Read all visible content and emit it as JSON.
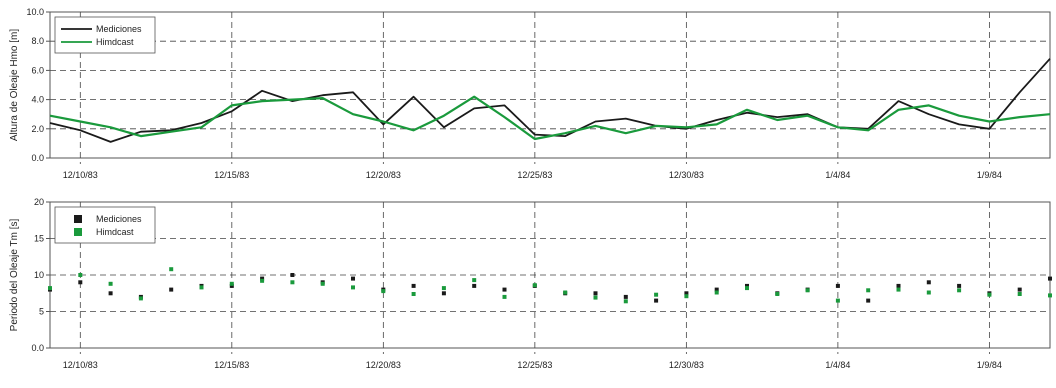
{
  "colors": {
    "measured": "#1a1a1a",
    "hindcast": "#1a9a3c",
    "grid": "#444444",
    "axis": "#555555"
  },
  "chart_data": [
    {
      "type": "line",
      "ylabel": "Altura de Oleaje Hmo [m]",
      "ylim": [
        0,
        10
      ],
      "yticks": [
        "0.0",
        "2.0",
        "4.0",
        "6.0",
        "8.0",
        "10.0"
      ],
      "ytick_values": [
        0,
        2,
        4,
        6,
        8,
        10
      ],
      "xlim": [
        "1983-12-09",
        "1984-01-11"
      ],
      "xticks": [
        "12/10/83",
        "12/15/83",
        "12/20/83",
        "12/25/83",
        "12/30/83",
        "1/4/84",
        "1/9/84"
      ],
      "xtick_dates": [
        "1983-12-10",
        "1983-12-15",
        "1983-12-20",
        "1983-12-25",
        "1983-12-30",
        "1984-01-04",
        "1984-01-09"
      ],
      "grid": "dashed",
      "legend": "top-left",
      "series": [
        {
          "name": "Mediciones",
          "style": "line",
          "x": [
            "1983-12-09",
            "1983-12-10",
            "1983-12-11",
            "1983-12-12",
            "1983-12-13",
            "1983-12-14",
            "1983-12-15",
            "1983-12-16",
            "1983-12-17",
            "1983-12-18",
            "1983-12-19",
            "1983-12-20",
            "1983-12-21",
            "1983-12-22",
            "1983-12-23",
            "1983-12-24",
            "1983-12-25",
            "1983-12-26",
            "1983-12-27",
            "1983-12-28",
            "1983-12-29",
            "1983-12-30",
            "1983-12-31",
            "1984-01-01",
            "1984-01-02",
            "1984-01-03",
            "1984-01-04",
            "1984-01-05",
            "1984-01-06",
            "1984-01-07",
            "1984-01-08",
            "1984-01-09",
            "1984-01-10",
            "1984-01-11"
          ],
          "y": [
            2.4,
            1.9,
            1.1,
            1.8,
            1.9,
            2.4,
            3.2,
            4.6,
            3.9,
            4.3,
            4.5,
            2.3,
            4.2,
            2.1,
            3.4,
            3.6,
            1.6,
            1.5,
            2.5,
            2.7,
            2.2,
            2.0,
            2.6,
            3.1,
            2.8,
            3.0,
            2.1,
            2.0,
            3.9,
            3.0,
            2.3,
            2.0,
            4.5,
            6.8
          ]
        },
        {
          "name": "Himdcast",
          "style": "line",
          "x": [
            "1983-12-09",
            "1983-12-10",
            "1983-12-11",
            "1983-12-12",
            "1983-12-13",
            "1983-12-14",
            "1983-12-15",
            "1983-12-16",
            "1983-12-17",
            "1983-12-18",
            "1983-12-19",
            "1983-12-20",
            "1983-12-21",
            "1983-12-22",
            "1983-12-23",
            "1983-12-24",
            "1983-12-25",
            "1983-12-26",
            "1983-12-27",
            "1983-12-28",
            "1983-12-29",
            "1983-12-30",
            "1983-12-31",
            "1984-01-01",
            "1984-01-02",
            "1984-01-03",
            "1984-01-04",
            "1984-01-05",
            "1984-01-06",
            "1984-01-07",
            "1984-01-08",
            "1984-01-09",
            "1984-01-10",
            "1984-01-11"
          ],
          "y": [
            2.9,
            2.5,
            2.1,
            1.5,
            1.8,
            2.1,
            3.6,
            3.9,
            4.0,
            4.1,
            3.0,
            2.5,
            1.9,
            2.9,
            4.2,
            2.8,
            1.3,
            1.7,
            2.2,
            1.7,
            2.2,
            2.1,
            2.3,
            3.3,
            2.6,
            2.9,
            2.1,
            1.9,
            3.3,
            3.6,
            2.9,
            2.5,
            2.8,
            3.0
          ]
        }
      ]
    },
    {
      "type": "scatter",
      "ylabel": "Periodo del Oleaje Tm [s]",
      "ylim": [
        0,
        20
      ],
      "yticks": [
        "0.0",
        "5",
        "10",
        "15",
        "20"
      ],
      "ytick_values": [
        0,
        5,
        10,
        15,
        20
      ],
      "xlim": [
        "1983-12-09",
        "1984-01-11"
      ],
      "xticks": [
        "12/10/83",
        "12/15/83",
        "12/20/83",
        "12/25/83",
        "12/30/83",
        "1/4/84",
        "1/9/84"
      ],
      "xtick_dates": [
        "1983-12-10",
        "1983-12-15",
        "1983-12-20",
        "1983-12-25",
        "1983-12-30",
        "1984-01-04",
        "1984-01-09"
      ],
      "grid": "dashed",
      "legend": "top-left",
      "series": [
        {
          "name": "Mediciones",
          "style": "square-markers",
          "x": [
            "1983-12-09",
            "1983-12-10",
            "1983-12-11",
            "1983-12-12",
            "1983-12-13",
            "1983-12-14",
            "1983-12-15",
            "1983-12-16",
            "1983-12-17",
            "1983-12-18",
            "1983-12-19",
            "1983-12-20",
            "1983-12-21",
            "1983-12-22",
            "1983-12-23",
            "1983-12-24",
            "1983-12-25",
            "1983-12-26",
            "1983-12-27",
            "1983-12-28",
            "1983-12-29",
            "1983-12-30",
            "1983-12-31",
            "1984-01-01",
            "1984-01-02",
            "1984-01-03",
            "1984-01-04",
            "1984-01-05",
            "1984-01-06",
            "1984-01-07",
            "1984-01-08",
            "1984-01-09",
            "1984-01-10",
            "1984-01-11"
          ],
          "y": [
            8.0,
            9.0,
            7.5,
            7.0,
            8.0,
            8.5,
            8.5,
            9.5,
            10.0,
            9.0,
            9.5,
            8.0,
            8.5,
            7.5,
            8.5,
            8.0,
            8.5,
            7.5,
            7.5,
            7.0,
            6.5,
            7.5,
            8.0,
            8.5,
            7.5,
            8.0,
            8.5,
            6.5,
            8.5,
            9.0,
            8.5,
            7.5,
            8.0,
            9.5
          ]
        },
        {
          "name": "Himdcast",
          "style": "square-markers",
          "x": [
            "1983-12-09",
            "1983-12-10",
            "1983-12-11",
            "1983-12-12",
            "1983-12-13",
            "1983-12-14",
            "1983-12-15",
            "1983-12-16",
            "1983-12-17",
            "1983-12-18",
            "1983-12-19",
            "1983-12-20",
            "1983-12-21",
            "1983-12-22",
            "1983-12-23",
            "1983-12-24",
            "1983-12-25",
            "1983-12-26",
            "1983-12-27",
            "1983-12-28",
            "1983-12-29",
            "1983-12-30",
            "1983-12-31",
            "1984-01-01",
            "1984-01-02",
            "1984-01-03",
            "1984-01-04",
            "1984-01-05",
            "1984-01-06",
            "1984-01-07",
            "1984-01-08",
            "1984-01-09",
            "1984-01-10",
            "1984-01-11"
          ],
          "y": [
            8.2,
            10.0,
            8.8,
            6.8,
            10.8,
            8.3,
            8.8,
            9.2,
            9.0,
            8.8,
            8.3,
            7.8,
            7.4,
            8.2,
            9.3,
            7.0,
            8.6,
            7.6,
            6.9,
            6.4,
            7.3,
            7.1,
            7.6,
            8.2,
            7.4,
            7.9,
            6.5,
            7.9,
            8.0,
            7.6,
            7.9,
            7.3,
            7.4,
            7.2
          ]
        }
      ]
    }
  ]
}
